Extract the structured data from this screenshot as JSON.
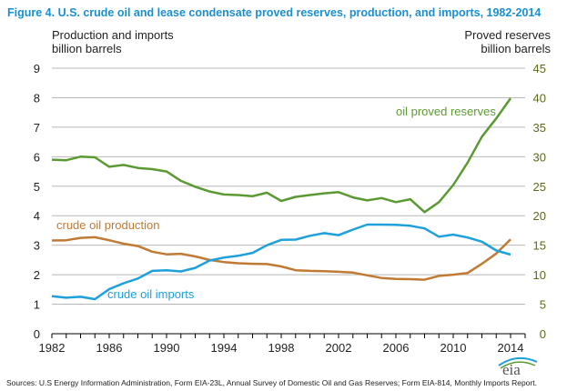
{
  "chart_data": {
    "type": "line",
    "title": "Figure 4. U.S. crude oil and lease condensate proved reserves, production, and imports, 1982-2014",
    "ylabel_left": [
      "Production and imports",
      "billion barrels"
    ],
    "ylabel_right": [
      "Proved reserves",
      "billion barrels"
    ],
    "ylim_left": [
      0,
      9
    ],
    "ylim_right": [
      0,
      45
    ],
    "yticks_left": [
      0,
      1,
      2,
      3,
      4,
      5,
      6,
      7,
      8,
      9
    ],
    "yticks_right": [
      0,
      5,
      10,
      15,
      20,
      25,
      30,
      35,
      40,
      45
    ],
    "xlim": [
      1982,
      2014
    ],
    "xticks": [
      1982,
      1986,
      1990,
      1994,
      1998,
      2002,
      2006,
      2010,
      2014
    ],
    "grid": true,
    "x": [
      1982,
      1983,
      1984,
      1985,
      1986,
      1987,
      1988,
      1989,
      1990,
      1991,
      1992,
      1993,
      1994,
      1995,
      1996,
      1997,
      1998,
      1999,
      2000,
      2001,
      2002,
      2003,
      2004,
      2005,
      2006,
      2007,
      2008,
      2009,
      2010,
      2011,
      2012,
      2013,
      2014
    ],
    "series": [
      {
        "name": "oil proved reserves",
        "axis": "right",
        "color": "#5b9a32",
        "values": [
          29.5,
          29.4,
          30.0,
          29.9,
          28.3,
          28.6,
          28.1,
          27.9,
          27.5,
          25.9,
          24.9,
          24.1,
          23.6,
          23.5,
          23.3,
          23.9,
          22.5,
          23.2,
          23.5,
          23.8,
          24.0,
          23.1,
          22.6,
          23.0,
          22.3,
          22.8,
          20.6,
          22.3,
          25.2,
          29.0,
          33.4,
          36.5,
          39.9
        ]
      },
      {
        "name": "crude oil production",
        "axis": "left",
        "color": "#c07a34",
        "values": [
          3.16,
          3.17,
          3.25,
          3.27,
          3.17,
          3.05,
          2.97,
          2.78,
          2.69,
          2.71,
          2.62,
          2.5,
          2.43,
          2.39,
          2.37,
          2.36,
          2.28,
          2.15,
          2.13,
          2.12,
          2.1,
          2.07,
          1.98,
          1.89,
          1.86,
          1.85,
          1.83,
          1.96,
          2.0,
          2.06,
          2.37,
          2.72,
          3.2
        ]
      },
      {
        "name": "crude oil imports",
        "axis": "left",
        "color": "#1ea0dc",
        "values": [
          1.27,
          1.22,
          1.25,
          1.17,
          1.51,
          1.71,
          1.87,
          2.13,
          2.15,
          2.11,
          2.23,
          2.48,
          2.58,
          2.64,
          2.74,
          3.0,
          3.18,
          3.19,
          3.32,
          3.41,
          3.34,
          3.53,
          3.7,
          3.7,
          3.69,
          3.66,
          3.57,
          3.29,
          3.36,
          3.26,
          3.12,
          2.82,
          2.68
        ]
      }
    ]
  },
  "logo": "eia",
  "source": "Sources: U.S Energy Information Administration, Form EIA-23L, Annual Survey of Domestic Oil and Gas Reserves;  Form EIA-814, Monthly Imports Report."
}
